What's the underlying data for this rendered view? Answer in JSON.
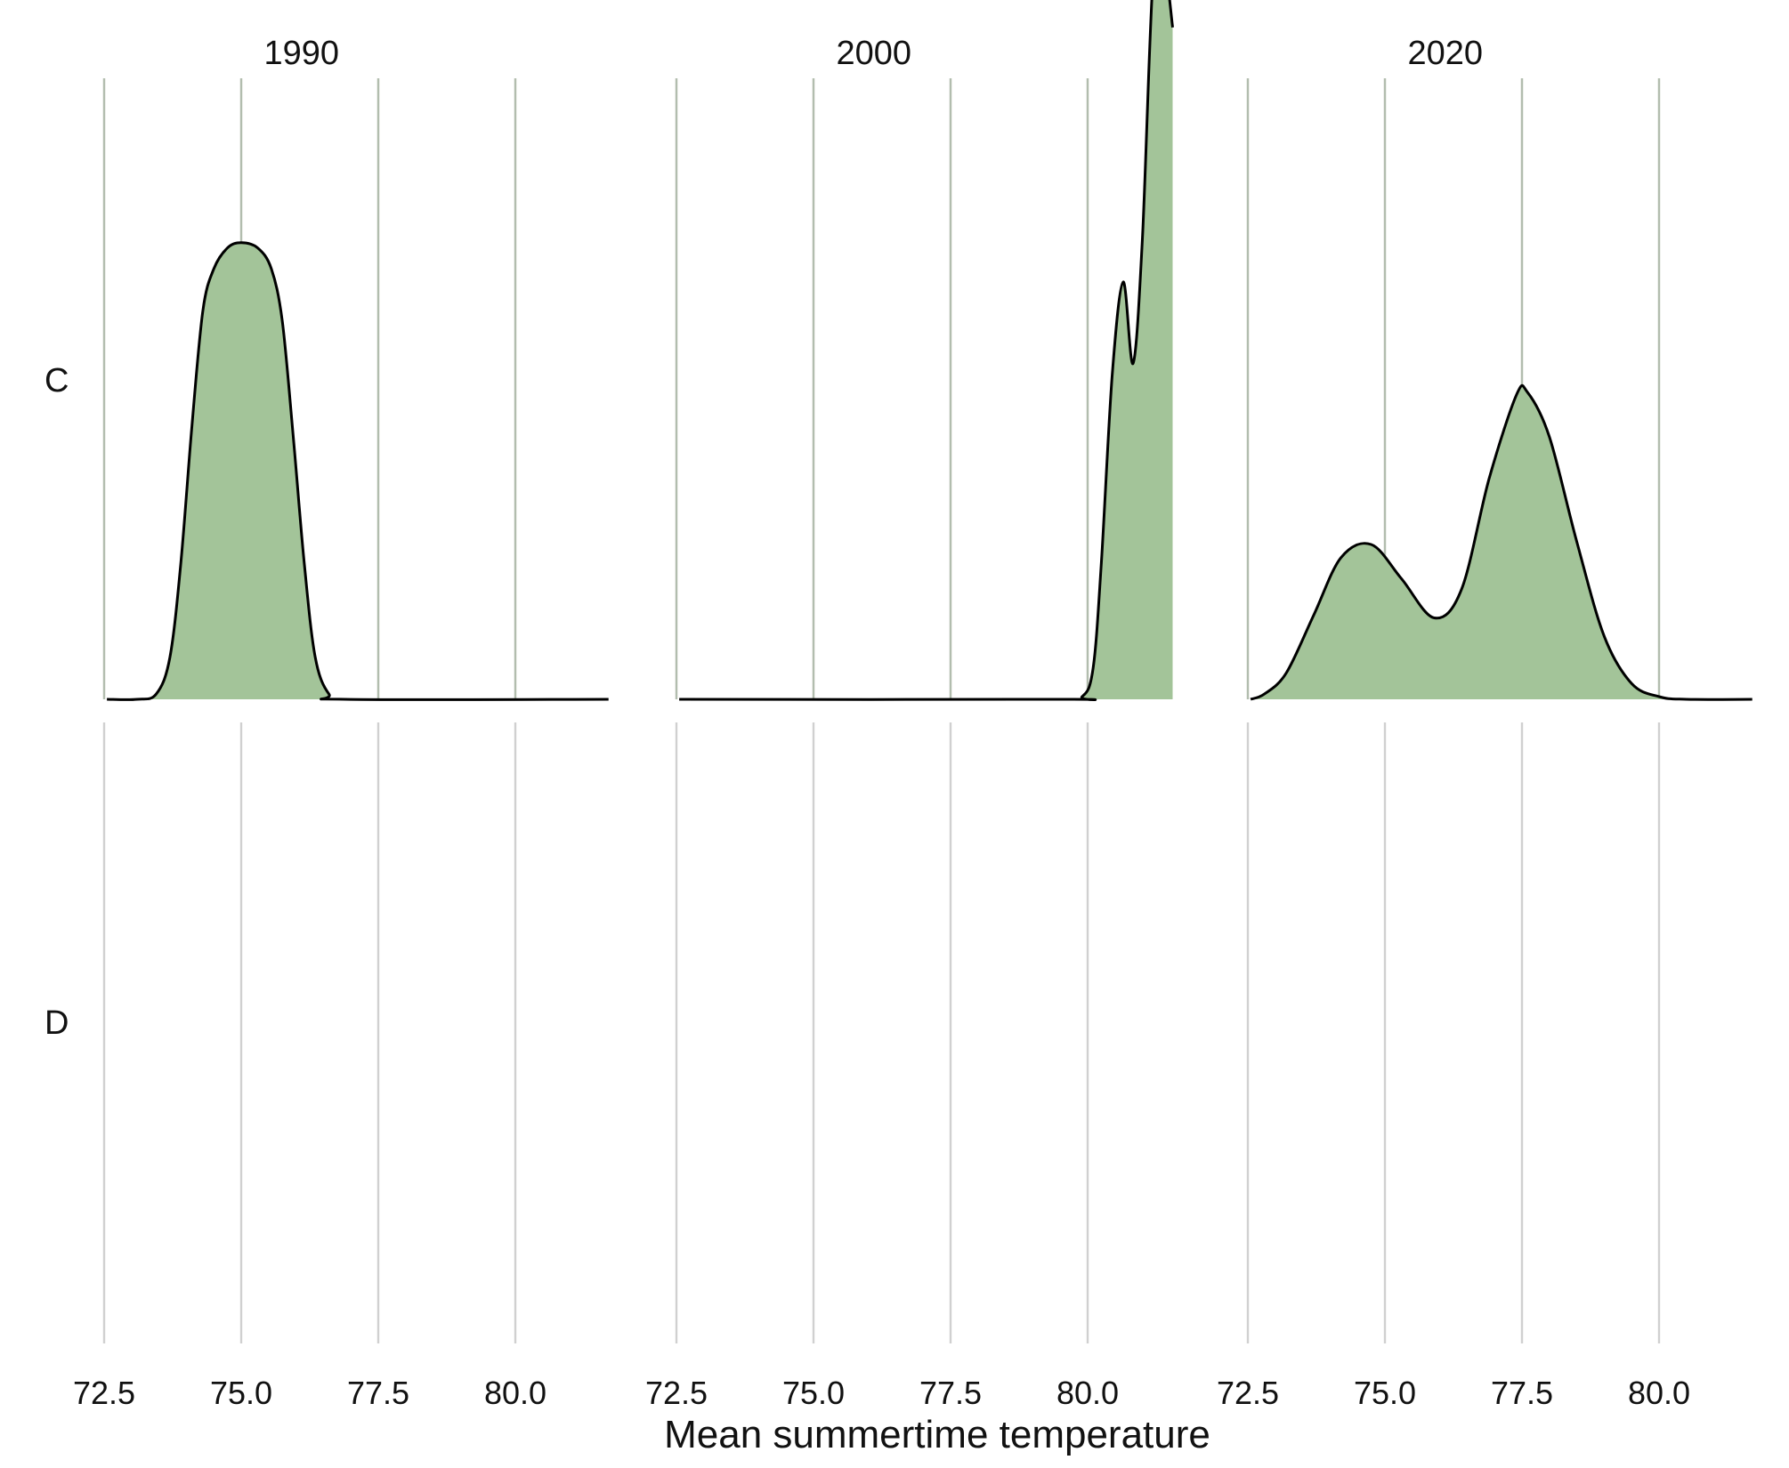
{
  "chart_data": {
    "type": "area",
    "chart_kind": "faceted density (ridgeline) plot",
    "xlabel": "Mean summertime temperature",
    "x_ticks": [
      72.5,
      75.0,
      77.5,
      80.0
    ],
    "x_tick_labels": [
      "72.5",
      "75.0",
      "77.5",
      "80.0"
    ],
    "xlim": [
      72.5,
      81.7
    ],
    "ylim": [
      0,
      1
    ],
    "grid": "vertical gridlines at x ticks",
    "legend": "none",
    "fill_color": "#a3c499",
    "line_color": "#000000",
    "grid_color": "#d0d0d0",
    "columns": [
      "1990",
      "2000",
      "2020"
    ],
    "rows": [
      "C",
      "D"
    ],
    "panels": [
      {
        "column": "1990",
        "row": "C",
        "x_range": [
          72.55,
          81.7
        ],
        "density_points": [
          [
            72.55,
            0.0
          ],
          [
            73.1,
            0.0
          ],
          [
            73.45,
            0.01
          ],
          [
            73.7,
            0.08
          ],
          [
            73.9,
            0.26
          ],
          [
            74.1,
            0.52
          ],
          [
            74.3,
            0.74
          ],
          [
            74.5,
            0.82
          ],
          [
            74.75,
            0.86
          ],
          [
            75.0,
            0.87
          ],
          [
            75.3,
            0.86
          ],
          [
            75.55,
            0.82
          ],
          [
            75.75,
            0.72
          ],
          [
            75.95,
            0.5
          ],
          [
            76.15,
            0.26
          ],
          [
            76.35,
            0.08
          ],
          [
            76.6,
            0.01
          ],
          [
            76.9,
            0.0
          ],
          [
            81.7,
            0.0
          ]
        ]
      },
      {
        "column": "2000",
        "row": "C",
        "x_range": [
          72.55,
          81.7
        ],
        "density_points": [
          [
            72.55,
            0.0
          ],
          [
            79.5,
            0.0
          ],
          [
            79.9,
            0.005
          ],
          [
            80.1,
            0.06
          ],
          [
            80.25,
            0.26
          ],
          [
            80.45,
            0.62
          ],
          [
            80.65,
            0.795
          ],
          [
            80.83,
            0.64
          ],
          [
            81.0,
            0.88
          ],
          [
            81.2,
            1.385
          ],
          [
            81.4,
            1.4
          ],
          [
            81.55,
            1.28
          ]
        ]
      },
      {
        "column": "2020",
        "row": "C",
        "x_range": [
          72.55,
          81.7
        ],
        "density_points": [
          [
            72.55,
            0.0
          ],
          [
            72.8,
            0.01
          ],
          [
            73.2,
            0.05
          ],
          [
            73.7,
            0.16
          ],
          [
            74.2,
            0.27
          ],
          [
            74.75,
            0.295
          ],
          [
            75.3,
            0.23
          ],
          [
            75.9,
            0.155
          ],
          [
            76.4,
            0.21
          ],
          [
            76.9,
            0.42
          ],
          [
            77.4,
            0.58
          ],
          [
            77.6,
            0.585
          ],
          [
            78.0,
            0.5
          ],
          [
            78.5,
            0.3
          ],
          [
            79.0,
            0.12
          ],
          [
            79.5,
            0.03
          ],
          [
            80.0,
            0.005
          ],
          [
            80.5,
            0.0
          ],
          [
            81.7,
            0.0
          ]
        ]
      },
      {
        "column": "1990",
        "row": "D",
        "density_points": []
      },
      {
        "column": "2000",
        "row": "D",
        "density_points": []
      },
      {
        "column": "2020",
        "row": "D",
        "density_points": []
      }
    ]
  }
}
